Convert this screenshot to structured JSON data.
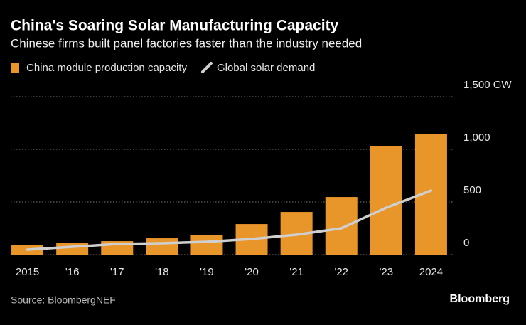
{
  "chart_data": {
    "type": "bar",
    "title": "China's Soaring Solar Manufacturing Capacity",
    "subtitle": "Chinese firms built panel factories faster than the industry needed",
    "categories": [
      "2015",
      "'16",
      "'17",
      "'18",
      "'19",
      "'20",
      "'21",
      "'22",
      "'23",
      "2024"
    ],
    "series": [
      {
        "name": "China module production capacity",
        "type": "bar",
        "color": "#e8952a",
        "values": [
          88,
          108,
          128,
          155,
          189,
          290,
          405,
          547,
          1027,
          1142
        ]
      },
      {
        "name": "Global solar demand",
        "type": "line",
        "color": "#cfcfcf",
        "values": [
          47,
          74,
          101,
          108,
          122,
          149,
          189,
          250,
          446,
          608
        ]
      }
    ],
    "ylim": [
      0,
      1500
    ],
    "yticks": [
      0,
      500,
      {
        "value": 1000,
        "label": "1,000"
      },
      {
        "value": 1500,
        "label": "1,500 GW"
      }
    ],
    "grid": true,
    "source": "Source: BloombergNEF",
    "brand": "Bloomberg"
  }
}
